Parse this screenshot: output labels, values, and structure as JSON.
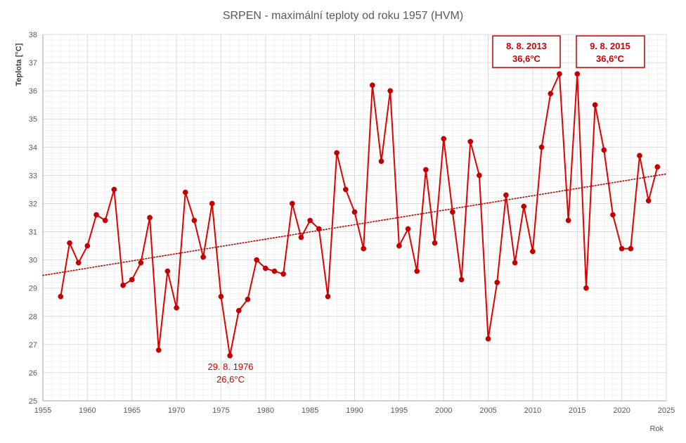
{
  "chart_data": {
    "type": "line",
    "title": "SRPEN - maximální teploty od roku 1957 (HVM)",
    "xlabel": "Rok",
    "ylabel": "Teplota  [°C]",
    "xlim": [
      1955,
      2025
    ],
    "ylim": [
      25,
      38
    ],
    "x_ticks": [
      1955,
      1960,
      1965,
      1970,
      1975,
      1980,
      1985,
      1990,
      1995,
      2000,
      2005,
      2010,
      2015,
      2020,
      2025
    ],
    "y_ticks": [
      25,
      26,
      27,
      28,
      29,
      30,
      31,
      32,
      33,
      34,
      35,
      36,
      37,
      38
    ],
    "grid": true,
    "series": [
      {
        "color": "#e00000",
        "x": [
          1957,
          1958,
          1959,
          1960,
          1961,
          1962,
          1963,
          1964,
          1965,
          1966,
          1967,
          1968,
          1969,
          1970,
          1971,
          1972,
          1973,
          1974,
          1975,
          1976,
          1977,
          1978,
          1979,
          1980,
          1981,
          1982,
          1983,
          1984,
          1985,
          1986,
          1987,
          1988,
          1989,
          1990,
          1991,
          1992,
          1993,
          1994,
          1995,
          1996,
          1997,
          1998,
          1999,
          2000,
          2001,
          2002,
          2003,
          2004,
          2005,
          2006,
          2007,
          2008,
          2009,
          2010,
          2011,
          2012,
          2013,
          2014,
          2015,
          2016,
          2017,
          2018,
          2019,
          2020,
          2021,
          2022,
          2023,
          2024
        ],
        "values": [
          28.7,
          30.6,
          29.9,
          30.5,
          31.6,
          31.4,
          32.5,
          29.1,
          29.3,
          29.9,
          31.5,
          26.8,
          29.6,
          28.3,
          32.4,
          31.4,
          30.1,
          32.0,
          28.7,
          26.6,
          28.2,
          28.6,
          30.0,
          29.7,
          29.6,
          29.5,
          32.0,
          30.8,
          31.4,
          31.1,
          28.7,
          33.8,
          32.5,
          31.7,
          30.4,
          36.2,
          33.5,
          36.0,
          30.5,
          31.1,
          29.6,
          33.2,
          30.6,
          34.3,
          31.7,
          29.3,
          34.2,
          33.0,
          27.2,
          29.2,
          32.3,
          29.9,
          31.9,
          30.3,
          34.0,
          35.9,
          36.6,
          31.4,
          36.6,
          29.0,
          35.5,
          33.9,
          31.6,
          30.4,
          30.4,
          33.7,
          32.1,
          33.3
        ]
      }
    ],
    "trendline": {
      "style": "dotted",
      "color": "#c00000",
      "x": [
        1955,
        2025
      ],
      "values": [
        29.45,
        33.05
      ]
    },
    "annotations": [
      {
        "line1": "29. 8. 1976",
        "line2": "26,6°C",
        "boxed": false
      },
      {
        "line1": "8. 8. 2013",
        "line2": "36,6°C",
        "boxed": true
      },
      {
        "line1": "9. 8. 2015",
        "line2": "36,6°C",
        "boxed": true
      }
    ]
  }
}
